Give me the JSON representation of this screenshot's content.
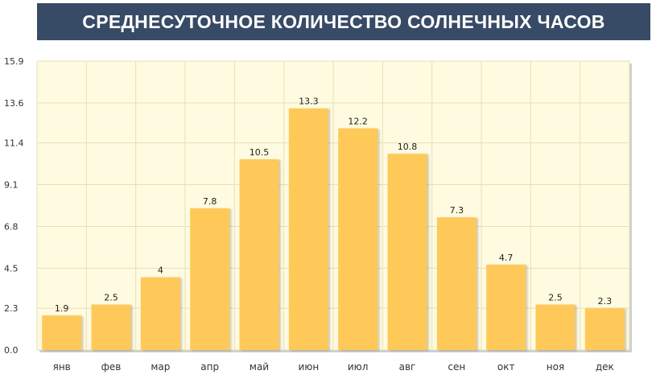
{
  "chart_data": {
    "type": "bar",
    "title": "СРЕДНЕСУТОЧНОЕ КОЛИЧЕСТВО СОЛНЕЧНЫХ ЧАСОВ",
    "categories": [
      "янв",
      "фев",
      "мар",
      "апр",
      "май",
      "июн",
      "июл",
      "авг",
      "сен",
      "окт",
      "ноя",
      "дек"
    ],
    "values": [
      1.9,
      2.5,
      4,
      7.8,
      10.5,
      13.3,
      12.2,
      10.8,
      7.3,
      4.7,
      2.5,
      2.3
    ],
    "value_labels": [
      "1.9",
      "2.5",
      "4",
      "7.8",
      "10.5",
      "13.3",
      "12.2",
      "10.8",
      "7.3",
      "4.7",
      "2.5",
      "2.3"
    ],
    "y_ticks": [
      "0.0",
      "2.3",
      "4.5",
      "6.8",
      "9.1",
      "11.4",
      "13.6",
      "15.9"
    ],
    "ylim": [
      0,
      15.9
    ],
    "grid": true,
    "xlabel": "",
    "ylabel": "",
    "colors": {
      "bar": "#ffc95a",
      "plot_bg": "#fffbe0",
      "grid": "#e6dfb8",
      "title_bg": "#374a66",
      "title_text": "#ffffff"
    }
  }
}
